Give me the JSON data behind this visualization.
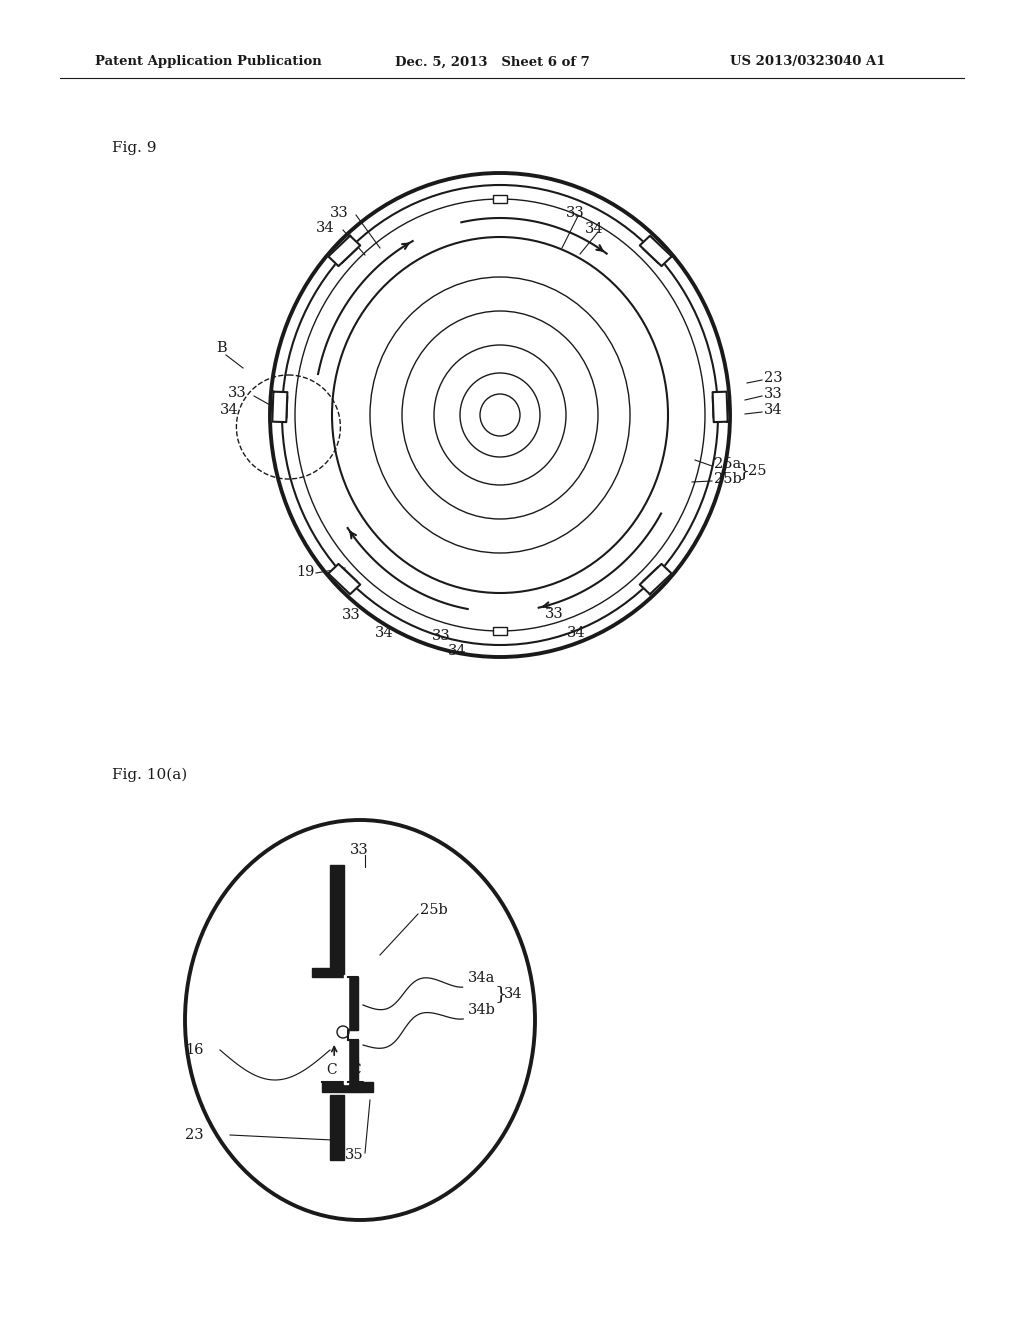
{
  "bg_color": "#ffffff",
  "line_color": "#1a1a1a",
  "header_left": "Patent Application Publication",
  "header_mid": "Dec. 5, 2013   Sheet 6 of 7",
  "header_right": "US 2013/0323040 A1",
  "fig9_label": "Fig. 9",
  "fig10a_label": "Fig. 10(a)"
}
